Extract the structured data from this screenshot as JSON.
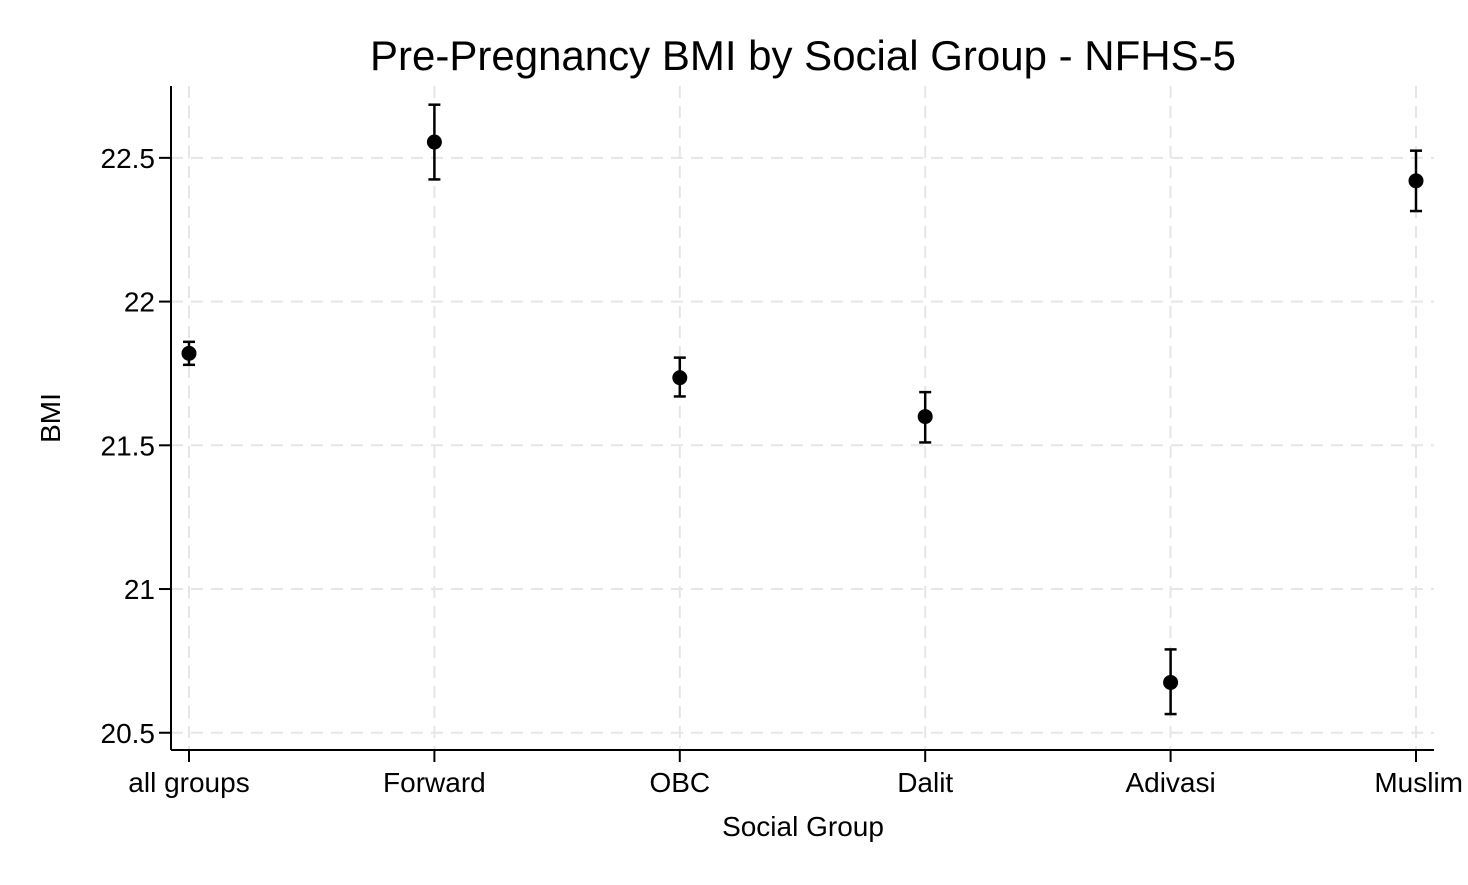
{
  "chart_data": {
    "type": "scatter",
    "title": "Pre-Pregnancy BMI by Social Group - NFHS-5",
    "xlabel": "Social Group",
    "ylabel": "BMI",
    "categories": [
      "all groups",
      "Forward",
      "OBC",
      "Dalit",
      "Adivasi",
      "Muslim"
    ],
    "values": [
      21.82,
      22.555,
      21.735,
      21.6,
      20.675,
      22.42
    ],
    "ci_lower": [
      21.78,
      22.425,
      21.67,
      21.51,
      20.565,
      22.315
    ],
    "ci_upper": [
      21.86,
      22.685,
      21.805,
      21.685,
      20.79,
      22.525
    ],
    "ylim": [
      20.44,
      22.75
    ],
    "yticks": [
      20.5,
      21,
      21.5,
      22,
      22.5
    ],
    "ytick_labels": [
      "20.5",
      "21",
      "21.5",
      "22",
      "22.5"
    ],
    "grid": true,
    "marker_color": "#000000",
    "grid_color": "#e6e6e6"
  }
}
